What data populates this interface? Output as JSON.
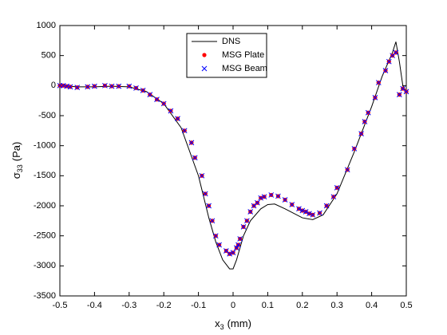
{
  "chart_data": {
    "type": "line",
    "xlabel": [
      "x",
      "3",
      "(mm)"
    ],
    "ylabel": [
      "σ",
      "33",
      "(Pa)"
    ],
    "xlim": [
      -0.5,
      0.5
    ],
    "xticks": [
      -0.5,
      -0.4,
      -0.3,
      -0.2,
      -0.1,
      0,
      0.1,
      0.2,
      0.3,
      0.4,
      0.5
    ],
    "ylim": [
      -3500,
      1000
    ],
    "yticks": [
      -3500,
      -3000,
      -2500,
      -2000,
      -1500,
      -1000,
      -500,
      0,
      500,
      1000
    ],
    "legend": "north",
    "series": [
      {
        "name": "DNS",
        "color": "#000000",
        "marker": "line",
        "x": [
          -0.5,
          -0.45,
          -0.4,
          -0.35,
          -0.3,
          -0.25,
          -0.2,
          -0.15,
          -0.1,
          -0.07,
          -0.05,
          -0.03,
          -0.01,
          0,
          0.01,
          0.03,
          0.05,
          0.08,
          0.1,
          0.12,
          0.15,
          0.2,
          0.23,
          0.26,
          0.3,
          0.35,
          0.4,
          0.43,
          0.46,
          0.47,
          0.48,
          0.49,
          0.5
        ],
        "values": [
          0,
          -20,
          -20,
          -10,
          -20,
          -100,
          -300,
          -700,
          -1500,
          -2200,
          -2600,
          -2900,
          -3050,
          -3050,
          -2900,
          -2500,
          -2250,
          -2050,
          -1980,
          -1970,
          -2050,
          -2200,
          -2230,
          -2150,
          -1800,
          -1100,
          -350,
          150,
          550,
          730,
          400,
          0,
          -100
        ]
      },
      {
        "name": "MSG Plate",
        "color": "#ff0000",
        "marker": "dot",
        "x": [
          -0.5,
          -0.49,
          -0.48,
          -0.47,
          -0.45,
          -0.42,
          -0.4,
          -0.37,
          -0.35,
          -0.33,
          -0.3,
          -0.28,
          -0.26,
          -0.24,
          -0.22,
          -0.2,
          -0.18,
          -0.16,
          -0.14,
          -0.12,
          -0.11,
          -0.09,
          -0.08,
          -0.07,
          -0.06,
          -0.05,
          -0.04,
          -0.02,
          -0.01,
          0,
          0.01,
          0.015,
          0.02,
          0.03,
          0.04,
          0.05,
          0.06,
          0.07,
          0.08,
          0.09,
          0.11,
          0.13,
          0.15,
          0.17,
          0.19,
          0.2,
          0.21,
          0.22,
          0.23,
          0.25,
          0.27,
          0.29,
          0.3,
          0.33,
          0.35,
          0.37,
          0.38,
          0.39,
          0.41,
          0.42,
          0.44,
          0.45,
          0.46,
          0.47,
          0.48,
          0.49,
          0.5
        ],
        "values": [
          0,
          0,
          -10,
          -20,
          -30,
          -20,
          -10,
          0,
          -10,
          -10,
          -10,
          -40,
          -80,
          -150,
          -230,
          -300,
          -420,
          -550,
          -750,
          -950,
          -1200,
          -1500,
          -1800,
          -2000,
          -2250,
          -2500,
          -2650,
          -2750,
          -2800,
          -2780,
          -2700,
          -2650,
          -2550,
          -2350,
          -2250,
          -2100,
          -2000,
          -1950,
          -1870,
          -1850,
          -1820,
          -1840,
          -1900,
          -1980,
          -2050,
          -2080,
          -2100,
          -2130,
          -2150,
          -2120,
          -2000,
          -1850,
          -1700,
          -1400,
          -1050,
          -800,
          -600,
          -450,
          -200,
          50,
          250,
          400,
          500,
          550,
          -150,
          -50,
          -100
        ]
      },
      {
        "name": "MSG Beam",
        "color": "#0000ff",
        "marker": "x",
        "x": [
          -0.5,
          -0.49,
          -0.48,
          -0.47,
          -0.45,
          -0.42,
          -0.4,
          -0.37,
          -0.35,
          -0.33,
          -0.3,
          -0.28,
          -0.26,
          -0.24,
          -0.22,
          -0.2,
          -0.18,
          -0.16,
          -0.14,
          -0.12,
          -0.11,
          -0.09,
          -0.08,
          -0.07,
          -0.06,
          -0.05,
          -0.04,
          -0.02,
          -0.01,
          0,
          0.01,
          0.015,
          0.02,
          0.03,
          0.04,
          0.05,
          0.06,
          0.07,
          0.08,
          0.09,
          0.11,
          0.13,
          0.15,
          0.17,
          0.19,
          0.2,
          0.21,
          0.22,
          0.23,
          0.25,
          0.27,
          0.29,
          0.3,
          0.33,
          0.35,
          0.37,
          0.38,
          0.39,
          0.41,
          0.42,
          0.44,
          0.45,
          0.46,
          0.47,
          0.48,
          0.49,
          0.5
        ],
        "values": [
          0,
          0,
          -10,
          -20,
          -30,
          -20,
          -10,
          0,
          -10,
          -10,
          -10,
          -40,
          -80,
          -150,
          -230,
          -300,
          -420,
          -550,
          -750,
          -950,
          -1200,
          -1500,
          -1800,
          -2000,
          -2250,
          -2500,
          -2650,
          -2750,
          -2800,
          -2780,
          -2700,
          -2650,
          -2550,
          -2350,
          -2250,
          -2100,
          -2000,
          -1950,
          -1870,
          -1850,
          -1820,
          -1840,
          -1900,
          -1980,
          -2050,
          -2080,
          -2100,
          -2130,
          -2150,
          -2120,
          -2000,
          -1850,
          -1700,
          -1400,
          -1050,
          -800,
          -600,
          -450,
          -200,
          50,
          250,
          400,
          500,
          550,
          -150,
          -50,
          -100
        ]
      }
    ]
  }
}
